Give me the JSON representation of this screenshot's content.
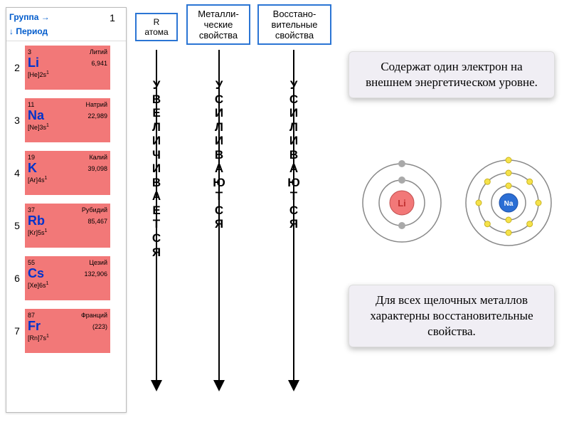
{
  "table": {
    "group_label": "Группа →",
    "period_label": "↓ Период",
    "group_num": "1",
    "card_bg": "#f27878",
    "sym_color": "#0033cc",
    "elements": [
      {
        "period": "2",
        "num": "3",
        "name": "Литий",
        "sym": "Li",
        "mass": "6,941",
        "conf": "[He]2s",
        "sup": "1"
      },
      {
        "period": "3",
        "num": "11",
        "name": "Натрий",
        "sym": "Na",
        "mass": "22,989",
        "conf": "[Ne]3s",
        "sup": "1"
      },
      {
        "period": "4",
        "num": "19",
        "name": "Калий",
        "sym": "K",
        "mass": "39,098",
        "conf": "[Ar]4s",
        "sup": "1"
      },
      {
        "period": "5",
        "num": "37",
        "name": "Рубидий",
        "sym": "Rb",
        "mass": "85,467",
        "conf": "[Kr]5s",
        "sup": "1"
      },
      {
        "period": "6",
        "num": "55",
        "name": "Цезий",
        "sym": "Cs",
        "mass": "132,906",
        "conf": "[Xe]6s",
        "sup": "1"
      },
      {
        "period": "7",
        "num": "87",
        "name": "Франций",
        "sym": "Fr",
        "mass": "(223)",
        "conf": "[Rn]7s",
        "sup": "1"
      }
    ]
  },
  "top_boxes": {
    "r_atom": "R\nатома",
    "metal": "Металли-\nческие\nсвойства",
    "reduce": "Восстано-\nвительные\nсвойства"
  },
  "arrows": {
    "col1_word": "УВЕЛИЧИВАЕТСЯ",
    "col2_word": "УСИЛИВАЮТСЯ",
    "col3_word": "УСИЛИВАЮТСЯ"
  },
  "info1": "Содержат один электрон на внешнем энергетическом уровне.",
  "info2": "Для всех щелочных металлов характерны восстановительные свойства.",
  "atoms": {
    "li": {
      "label": "Li",
      "center_fill": "#f27878",
      "electron_fill": "#a9a9a9",
      "label_color": "#c03030"
    },
    "na": {
      "label": "Na",
      "center_fill": "#2b6ed4",
      "electron_fill": "#f5e24a",
      "label_color": "#ffffff"
    }
  },
  "colors": {
    "border_blue": "#2b75d4",
    "box_bg": "#f0eef4"
  }
}
